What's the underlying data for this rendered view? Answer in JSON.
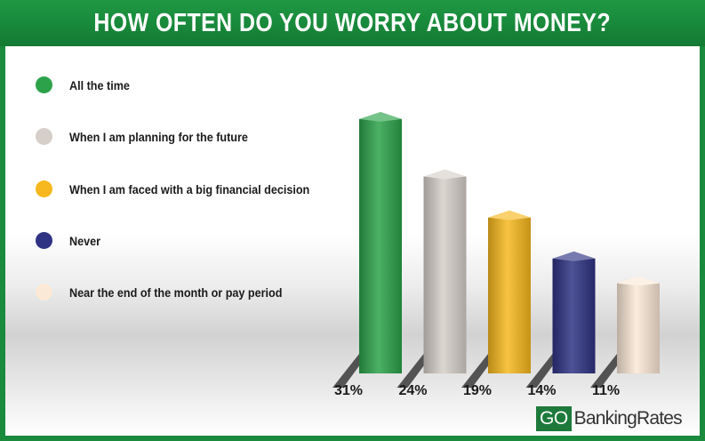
{
  "chart_data": {
    "type": "bar",
    "title": "HOW OFTEN DO YOU WORRY ABOUT MONEY?",
    "categories": [
      "All the time",
      "When I am planning for the future",
      "When I am faced with a big financial decision",
      "Never",
      "Near the end of the month or pay period"
    ],
    "values": [
      31,
      24,
      19,
      14,
      11
    ],
    "value_labels": [
      "31%",
      "24%",
      "19%",
      "14%",
      "11%"
    ],
    "colors": [
      "#2ca24a",
      "#d6cfc9",
      "#f6b81e",
      "#2e3383",
      "#fbe9d7"
    ],
    "legend": "left",
    "grid": false
  },
  "brand": {
    "go": "GO",
    "rest": "BankingRates"
  }
}
